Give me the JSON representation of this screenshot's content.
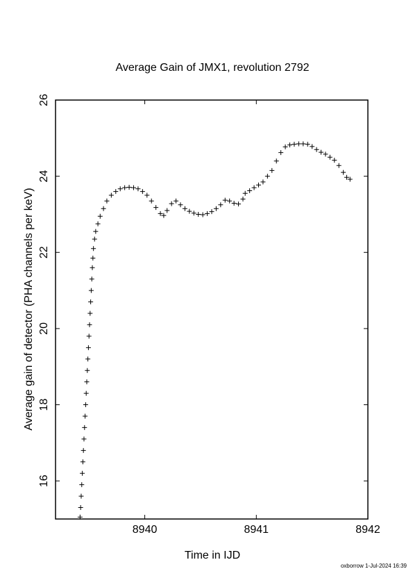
{
  "chart_data": {
    "type": "scatter",
    "title": "Average Gain of JMX1, revolution 2792",
    "x_label": "Time in IJD",
    "y_label": "Average gain of detector (PHA channels per keV)",
    "footer": "oxborrow  1-Jul-2024 16:39",
    "color": "#000000",
    "xlim": [
      8939.2,
      8942
    ],
    "ylim": [
      15,
      26
    ],
    "xticks": [
      8940,
      8941,
      8942
    ],
    "yticks": [
      16,
      18,
      20,
      22,
      24,
      26
    ],
    "x": [
      8939.42,
      8939.425,
      8939.43,
      8939.435,
      8939.44,
      8939.445,
      8939.45,
      8939.455,
      8939.46,
      8939.465,
      8939.47,
      8939.475,
      8939.48,
      8939.485,
      8939.49,
      8939.495,
      8939.5,
      8939.505,
      8939.51,
      8939.515,
      8939.52,
      8939.525,
      8939.53,
      8939.535,
      8939.54,
      8939.55,
      8939.56,
      8939.58,
      8939.6,
      8939.63,
      8939.66,
      8939.7,
      8939.74,
      8939.78,
      8939.82,
      8939.86,
      8939.9,
      8939.94,
      8939.98,
      8940.02,
      8940.06,
      8940.1,
      8940.14,
      8940.17,
      8940.2,
      8940.24,
      8940.28,
      8940.32,
      8940.36,
      8940.4,
      8940.44,
      8940.48,
      8940.52,
      8940.56,
      8940.6,
      8940.64,
      8940.68,
      8940.72,
      8940.76,
      8940.8,
      8940.84,
      8940.88,
      8940.9,
      8940.94,
      8940.98,
      8941.02,
      8941.06,
      8941.1,
      8941.14,
      8941.18,
      8941.22,
      8941.26,
      8941.3,
      8941.34,
      8941.38,
      8941.42,
      8941.46,
      8941.5,
      8941.54,
      8941.58,
      8941.62,
      8941.66,
      8941.7,
      8941.74,
      8941.78,
      8941.81,
      8941.84
    ],
    "values": [
      15.05,
      15.3,
      15.6,
      15.9,
      16.2,
      16.5,
      16.8,
      17.1,
      17.4,
      17.7,
      18.0,
      18.3,
      18.6,
      18.9,
      19.2,
      19.5,
      19.8,
      20.1,
      20.4,
      20.7,
      21.0,
      21.3,
      21.6,
      21.85,
      22.1,
      22.35,
      22.55,
      22.75,
      22.95,
      23.15,
      23.35,
      23.5,
      23.6,
      23.67,
      23.7,
      23.71,
      23.7,
      23.67,
      23.6,
      23.5,
      23.35,
      23.18,
      23.02,
      22.97,
      23.1,
      23.28,
      23.35,
      23.25,
      23.15,
      23.08,
      23.03,
      23.0,
      22.99,
      23.02,
      23.07,
      23.15,
      23.25,
      23.37,
      23.35,
      23.29,
      23.27,
      23.4,
      23.55,
      23.62,
      23.7,
      23.77,
      23.85,
      24.0,
      24.15,
      24.4,
      24.62,
      24.77,
      24.82,
      24.84,
      24.85,
      24.85,
      24.84,
      24.78,
      24.7,
      24.63,
      24.58,
      24.5,
      24.42,
      24.28,
      24.1,
      23.97,
      23.92
    ]
  }
}
